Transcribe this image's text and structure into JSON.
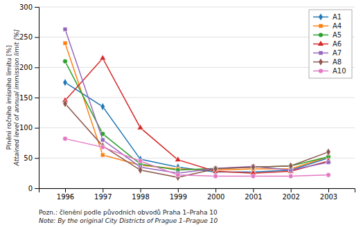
{
  "chart_data": {
    "type": "line",
    "y_label": [
      "Plnění ročního imisního limitu [%]",
      "Attained level of annual immission limit [%]"
    ],
    "annotations": [
      "Pozn.: členění podle původních obvodů Praha 1–Praha 10",
      "Note: By the original City Districts of Prague 1–Prague 10"
    ],
    "x": [
      1996,
      1997,
      1998,
      1999,
      2000,
      2001,
      2002,
      2003
    ],
    "series": [
      {
        "name": "A1",
        "marker": "diamond",
        "values": [
          175,
          135,
          48,
          35,
          27,
          27,
          30,
          50
        ]
      },
      {
        "name": "A4",
        "marker": "square",
        "values": [
          240,
          55,
          38,
          32,
          30,
          32,
          32,
          52
        ]
      },
      {
        "name": "A5",
        "marker": "circle",
        "values": [
          210,
          90,
          40,
          30,
          33,
          35,
          37,
          52
        ]
      },
      {
        "name": "A6",
        "marker": "triangle",
        "values": [
          145,
          215,
          100,
          47,
          28,
          25,
          28,
          45
        ]
      },
      {
        "name": "A7",
        "marker": "square",
        "values": [
          263,
          80,
          35,
          25,
          33,
          36,
          30,
          43
        ]
      },
      {
        "name": "A8",
        "marker": "diamond",
        "values": [
          140,
          70,
          30,
          18,
          32,
          35,
          37,
          60
        ]
      },
      {
        "name": "A10",
        "marker": "circle",
        "values": [
          82,
          68,
          45,
          22,
          20,
          20,
          20,
          22
        ]
      }
    ],
    "xlim": [
      1995.3,
      2003.7
    ],
    "xticks": [
      1996,
      1997,
      1998,
      1999,
      2000,
      2001,
      2002,
      2003
    ],
    "ylim": [
      0,
      300
    ],
    "yticks": [
      0,
      50,
      100,
      150,
      200,
      250,
      300
    ],
    "grid": "y",
    "legend": "upper right"
  }
}
